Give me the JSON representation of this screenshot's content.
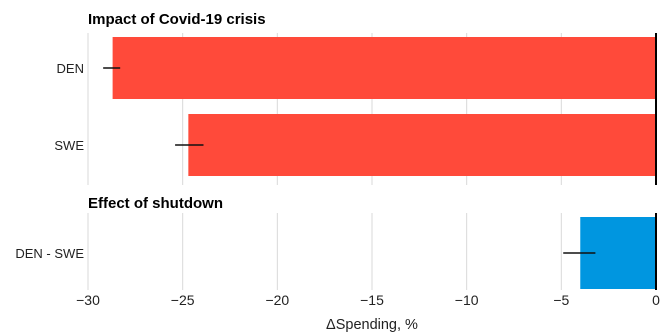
{
  "chart_data": {
    "type": "bar",
    "orientation": "horizontal",
    "xlabel": "ΔSpending, %",
    "xlim": [
      -30,
      0
    ],
    "xticks": [
      -30,
      -25,
      -20,
      -15,
      -10,
      -5,
      0
    ],
    "xtick_labels": [
      "−30",
      "−25",
      "−20",
      "−15",
      "−10",
      "−5",
      "0"
    ],
    "grid": "vertical",
    "panels": [
      {
        "title": "Impact of Covid-19 crisis",
        "bars": [
          {
            "category": "DEN",
            "value": -28.7,
            "ci": [
              -29.2,
              -28.3
            ],
            "color": "#ff4a3a"
          },
          {
            "category": "SWE",
            "value": -24.7,
            "ci": [
              -25.4,
              -23.9
            ],
            "color": "#ff4a3a"
          }
        ]
      },
      {
        "title": "Effect of shutdown",
        "bars": [
          {
            "category": "DEN - SWE",
            "value": -4.0,
            "ci": [
              -4.9,
              -3.2
            ],
            "color": "#0096e0"
          }
        ]
      }
    ]
  }
}
